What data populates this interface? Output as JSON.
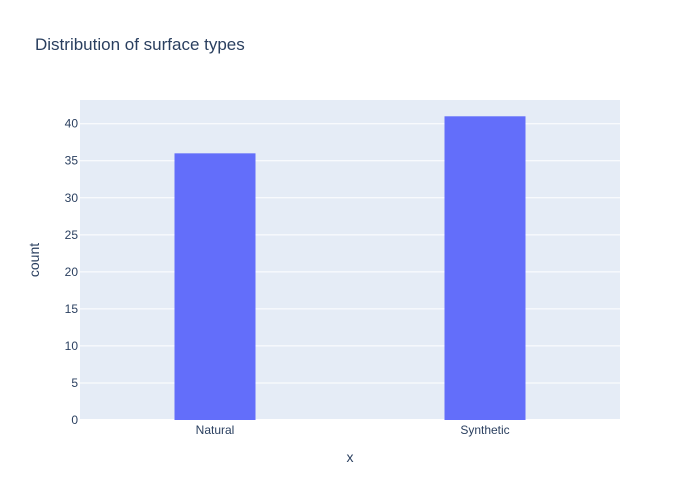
{
  "chart_data": {
    "type": "bar",
    "title": "Distribution of surface types",
    "xlabel": "x",
    "ylabel": "count",
    "categories": [
      "Natural",
      "Synthetic"
    ],
    "values": [
      36,
      41
    ],
    "ylim": [
      0,
      43.2
    ],
    "yticks": [
      0,
      5,
      10,
      15,
      20,
      25,
      30,
      35,
      40
    ],
    "grid": true,
    "legend": "none",
    "colors": {
      "bar": "#636efa",
      "plot_background": "#e5ecf6",
      "gridline": "#ffffff",
      "text": "#2a3f5f"
    }
  }
}
